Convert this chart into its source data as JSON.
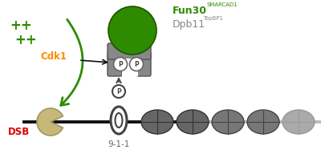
{
  "bg_color": "#ffffff",
  "fun30_color": "#2e8b00",
  "fun30_text_color": "#2e8b00",
  "cdk1_color": "#ff8c00",
  "dpb11_color": "#888888",
  "arrow_color": "#2e8b00",
  "pac_color": "#c8b878",
  "pac_edge": "#999966",
  "dna_color": "#111111",
  "dna_gray_color": "#bbbbbb",
  "nine_one_one_color": "#444444",
  "nucleosome_dark": "#666666",
  "nucleosome_mid": "#777777",
  "nucleosome_light": "#aaaaaa",
  "clamp_color": "#888888",
  "clamp_edge": "#555555",
  "dsb_color": "#dd0000",
  "plus_color": "#2e8b00",
  "fun30_label": "Fun30",
  "fun30_super": "SMARCAD1",
  "dpb11_label": "Dpb11",
  "dpb11_super": "TopBP1",
  "cdk1_label": "Cdk1",
  "dsb_label": "DSB",
  "nine_one_one_label": "9-1-1"
}
